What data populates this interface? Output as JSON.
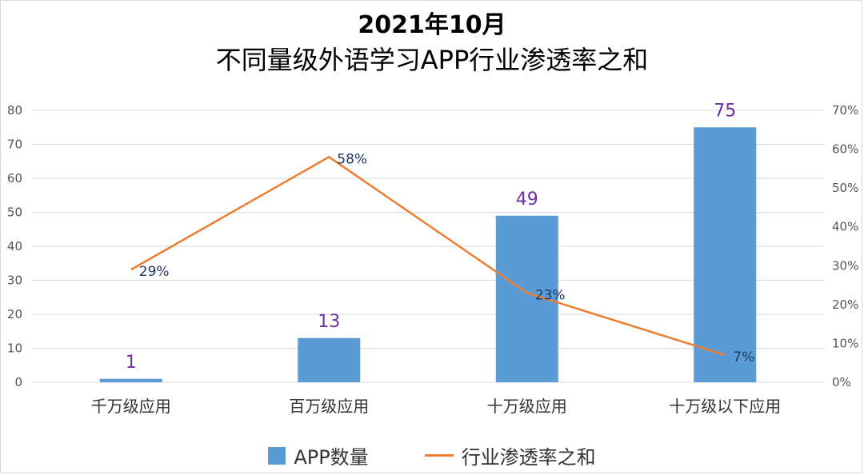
{
  "chart_data": {
    "type": "bar",
    "title": "2021年10月",
    "subtitle": "不同量级外语学习APP行业渗透率之和",
    "categories": [
      "千万级应用",
      "百万级应用",
      "十万级应用",
      "十万级以下应用"
    ],
    "series": [
      {
        "name": "APP数量",
        "type": "bar",
        "axis": "left",
        "values": [
          1,
          13,
          49,
          75
        ],
        "labels": [
          "1",
          "13",
          "49",
          "75"
        ],
        "color": "#5b9bd5"
      },
      {
        "name": "行业渗透率之和",
        "type": "line",
        "axis": "right",
        "values": [
          29,
          58,
          23,
          7
        ],
        "labels": [
          "29%",
          "58%",
          "23%",
          "7%"
        ],
        "color": "#ed7d31"
      }
    ],
    "y_left": {
      "range": [
        0,
        80
      ],
      "ticks": [
        "0",
        "10",
        "20",
        "30",
        "40",
        "50",
        "60",
        "70",
        "80"
      ]
    },
    "y_right": {
      "range": [
        0,
        70
      ],
      "ticks": [
        "0%",
        "10%",
        "20%",
        "30%",
        "40%",
        "50%",
        "60%",
        "70%"
      ]
    },
    "grid": true,
    "legend_position": "bottom"
  }
}
